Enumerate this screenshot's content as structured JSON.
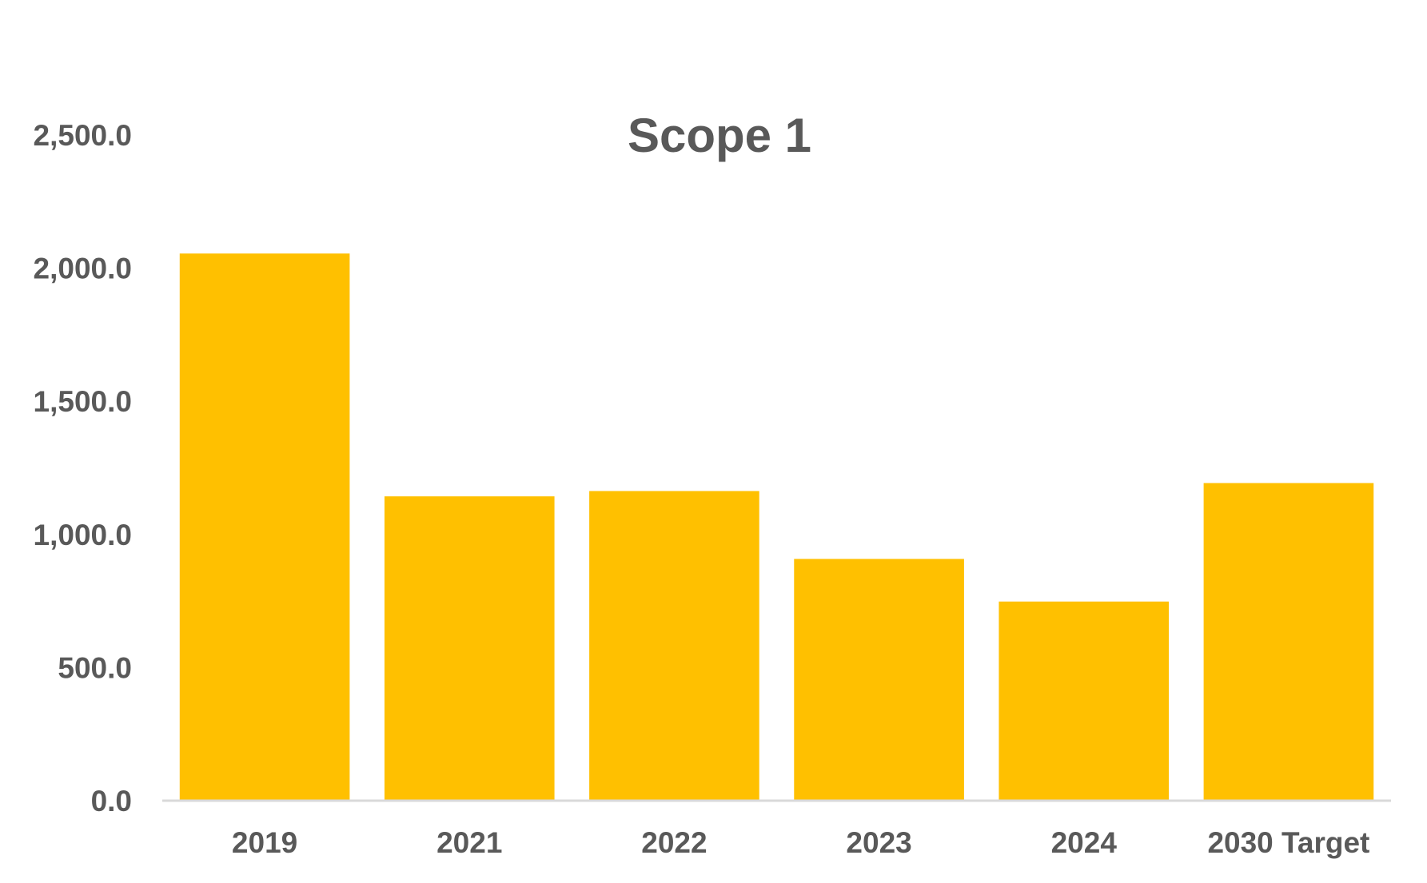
{
  "chart_data": {
    "type": "bar",
    "title": "Scope 1",
    "xlabel": "",
    "ylabel": "",
    "categories": [
      "2019",
      "2021",
      "2022",
      "2023",
      "2024",
      "2030 Target"
    ],
    "values": [
      2055,
      1143,
      1163,
      908,
      748,
      1193
    ],
    "ylim": [
      0,
      2500
    ],
    "yticks": [
      0,
      500,
      1000,
      1500,
      2000,
      2500
    ],
    "ytick_labels": [
      "0.0",
      "500.0",
      "1,000.0",
      "1,500.0",
      "2,000.0",
      "2,500.0"
    ],
    "grid": false,
    "legend": "none",
    "colors": {
      "bar": "#FFC000",
      "axis": "#D9D9D9",
      "text": "#595959"
    }
  }
}
